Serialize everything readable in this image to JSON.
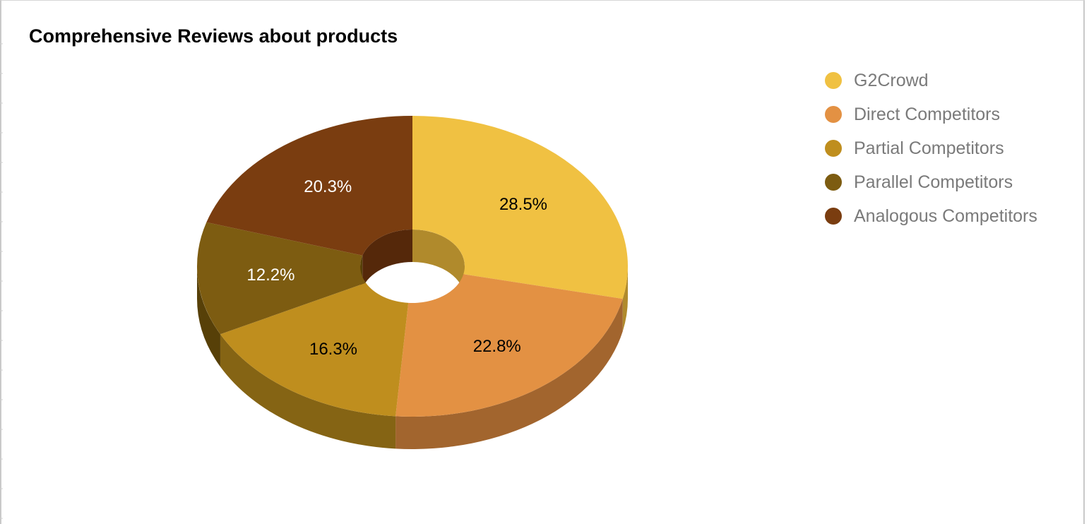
{
  "chart_data": {
    "type": "pie",
    "style": "3d-donut",
    "title": "Comprehensive Reviews about products",
    "legend_position": "right",
    "slices": [
      {
        "name": "G2Crowd",
        "value": 28.5,
        "label": "28.5%",
        "color": "#f0c142",
        "side_color": "#b08a2c",
        "label_color": "#000000"
      },
      {
        "name": "Direct Competitors",
        "value": 22.8,
        "label": "22.8%",
        "color": "#e39143",
        "side_color": "#a2652e",
        "label_color": "#000000"
      },
      {
        "name": "Partial Competitors",
        "value": 16.3,
        "label": "16.3%",
        "color": "#bf8e1e",
        "side_color": "#856414",
        "label_color": "#000000"
      },
      {
        "name": "Parallel Competitors",
        "value": 12.2,
        "label": "12.2%",
        "color": "#7d5c11",
        "side_color": "#574008",
        "label_color": "#ffffff"
      },
      {
        "name": "Analogous Competitors",
        "value": 20.3,
        "label": "20.3%",
        "color": "#7a3d10",
        "side_color": "#55280a",
        "label_color": "#ffffff"
      }
    ]
  }
}
